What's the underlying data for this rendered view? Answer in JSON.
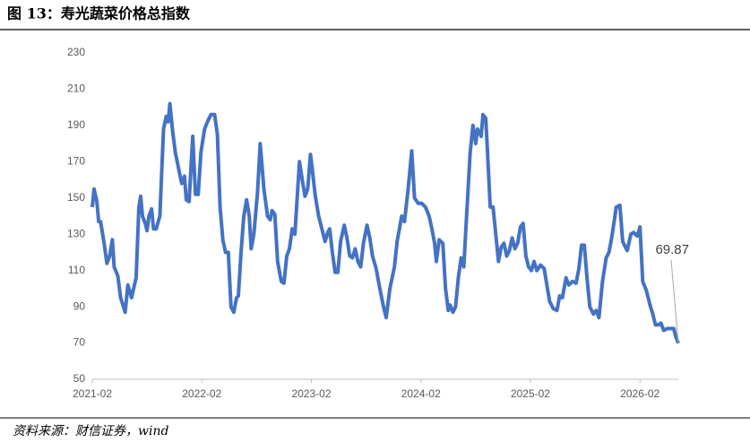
{
  "chart_data": {
    "type": "line",
    "title": "图 13：寿光蔬菜价格总指数",
    "source": "资料来源：财信证券，wind",
    "x": [
      0,
      0.2,
      0.5,
      0.7,
      0.9,
      1.3,
      1.6,
      1.9,
      2.2,
      2.4,
      2.8,
      3.1,
      3.6,
      3.9,
      4.3,
      4.8,
      5.1,
      5.3,
      5.5,
      5.8,
      6.0,
      6.2,
      6.5,
      6.7,
      7.0,
      7.4,
      7.8,
      8.1,
      8.3,
      8.5,
      8.8,
      9.1,
      9.5,
      9.8,
      10.1,
      10.3,
      10.6,
      11.0,
      11.3,
      11.6,
      11.9,
      12.3,
      12.7,
      13.0,
      13.4,
      13.7,
      14.0,
      14.3,
      14.6,
      14.9,
      15.2,
      15.5,
      15.8,
      16.0,
      16.3,
      16.6,
      16.9,
      17.2,
      17.4,
      17.7,
      18.1,
      18.4,
      18.8,
      19.2,
      19.5,
      19.7,
      20.0,
      20.3,
      20.7,
      21.0,
      21.3,
      21.6,
      21.9,
      22.2,
      22.7,
      23.0,
      23.3,
      23.6,
      23.9,
      24.1,
      24.4,
      24.8,
      25.1,
      25.5,
      25.8,
      26.0,
      26.3,
      26.6,
      26.9,
      27.2,
      27.6,
      27.9,
      28.2,
      28.5,
      28.8,
      29.1,
      29.4,
      29.7,
      30.1,
      30.4,
      30.7,
      31.1,
      31.5,
      31.9,
      32.2,
      32.6,
      33.1,
      33.4,
      33.9,
      34.2,
      34.6,
      35.0,
      35.3,
      35.7,
      36.1,
      36.5,
      36.9,
      37.2,
      37.5,
      37.7,
      38.0,
      38.4,
      38.7,
      39.0,
      39.2,
      39.5,
      39.8,
      40.1,
      40.4,
      40.7,
      41.0,
      41.4,
      41.7,
      42.0,
      42.2,
      42.6,
      42.8,
      43.1,
      43.3,
      43.6,
      43.9,
      44.2,
      44.5,
      44.8,
      45.1,
      45.4,
      45.7,
      46.0,
      46.3,
      46.6,
      46.9,
      47.2,
      47.5,
      47.8,
      48.1,
      48.4,
      48.7,
      49.1,
      49.5,
      49.8,
      50.1,
      50.5,
      50.9,
      51.2,
      51.5,
      51.9,
      52.2,
      52.6,
      53.0,
      53.3,
      53.6,
      53.9,
      54.2,
      54.5,
      54.9,
      55.2,
      55.5,
      55.9,
      56.3,
      56.6,
      56.9,
      57.2,
      57.4,
      57.8,
      58.1,
      58.3,
      58.6,
      59.0,
      59.3,
      59.7,
      60.0,
      60.3,
      60.7,
      61.1,
      61.4,
      61.7,
      62.0,
      62.3,
      62.6,
      63.0,
      63.4,
      63.7,
      63.9,
      64.2
    ],
    "series": [
      {
        "color": "#4472c4",
        "values": [
          145,
          155,
          148,
          137,
          137,
          125,
          114,
          118,
          127,
          112,
          107,
          95,
          87,
          102,
          95,
          106,
          145,
          151,
          140,
          136,
          132,
          140,
          144,
          133,
          133,
          140,
          188,
          195,
          192,
          202,
          187,
          175,
          165,
          158,
          162,
          149,
          148,
          184,
          152,
          152,
          175,
          188,
          193,
          196,
          196,
          185,
          145,
          127,
          120,
          120,
          90,
          87,
          95,
          96,
          120,
          140,
          149,
          140,
          122,
          130,
          153,
          180,
          155,
          140,
          138,
          143,
          141,
          115,
          104,
          103,
          118,
          122,
          133,
          130,
          170,
          160,
          151,
          155,
          174,
          166,
          152,
          140,
          134,
          126,
          131,
          133,
          120,
          109,
          109,
          126,
          135,
          128,
          118,
          117,
          122,
          115,
          112,
          125,
          135,
          128,
          118,
          111,
          100,
          90,
          84,
          100,
          112,
          126,
          140,
          137,
          155,
          176,
          150,
          147,
          147,
          145,
          140,
          133,
          125,
          115,
          127,
          125,
          100,
          88,
          91,
          87,
          90,
          106,
          117,
          112,
          140,
          175,
          190,
          180,
          188,
          184,
          196,
          194,
          175,
          145,
          145,
          130,
          115,
          123,
          125,
          118,
          121,
          128,
          122,
          125,
          134,
          136,
          118,
          112,
          110,
          115,
          110,
          113,
          111,
          102,
          93,
          89,
          88,
          96,
          95,
          106,
          102,
          104,
          103,
          111,
          124,
          124,
          106,
          90,
          86,
          88,
          84,
          104,
          117,
          120,
          128,
          138,
          145,
          146,
          126,
          124,
          121,
          130,
          131,
          129,
          134,
          104,
          99,
          91,
          86,
          80,
          80,
          81,
          77,
          78,
          78,
          78,
          74,
          69.87
        ]
      }
    ],
    "xlim": [
      0,
      64.2
    ],
    "xticks": [
      {
        "value": 0,
        "label": "2021-02"
      },
      {
        "value": 12,
        "label": "2022-02"
      },
      {
        "value": 24,
        "label": "2023-02"
      },
      {
        "value": 36,
        "label": "2024-02"
      },
      {
        "value": 48,
        "label": "2025-02"
      },
      {
        "value": 60,
        "label": "2026-02"
      }
    ],
    "ylim": [
      50,
      230
    ],
    "yticks": [
      50,
      70,
      90,
      110,
      130,
      150,
      170,
      190,
      210,
      230
    ],
    "grid": false
  }
}
